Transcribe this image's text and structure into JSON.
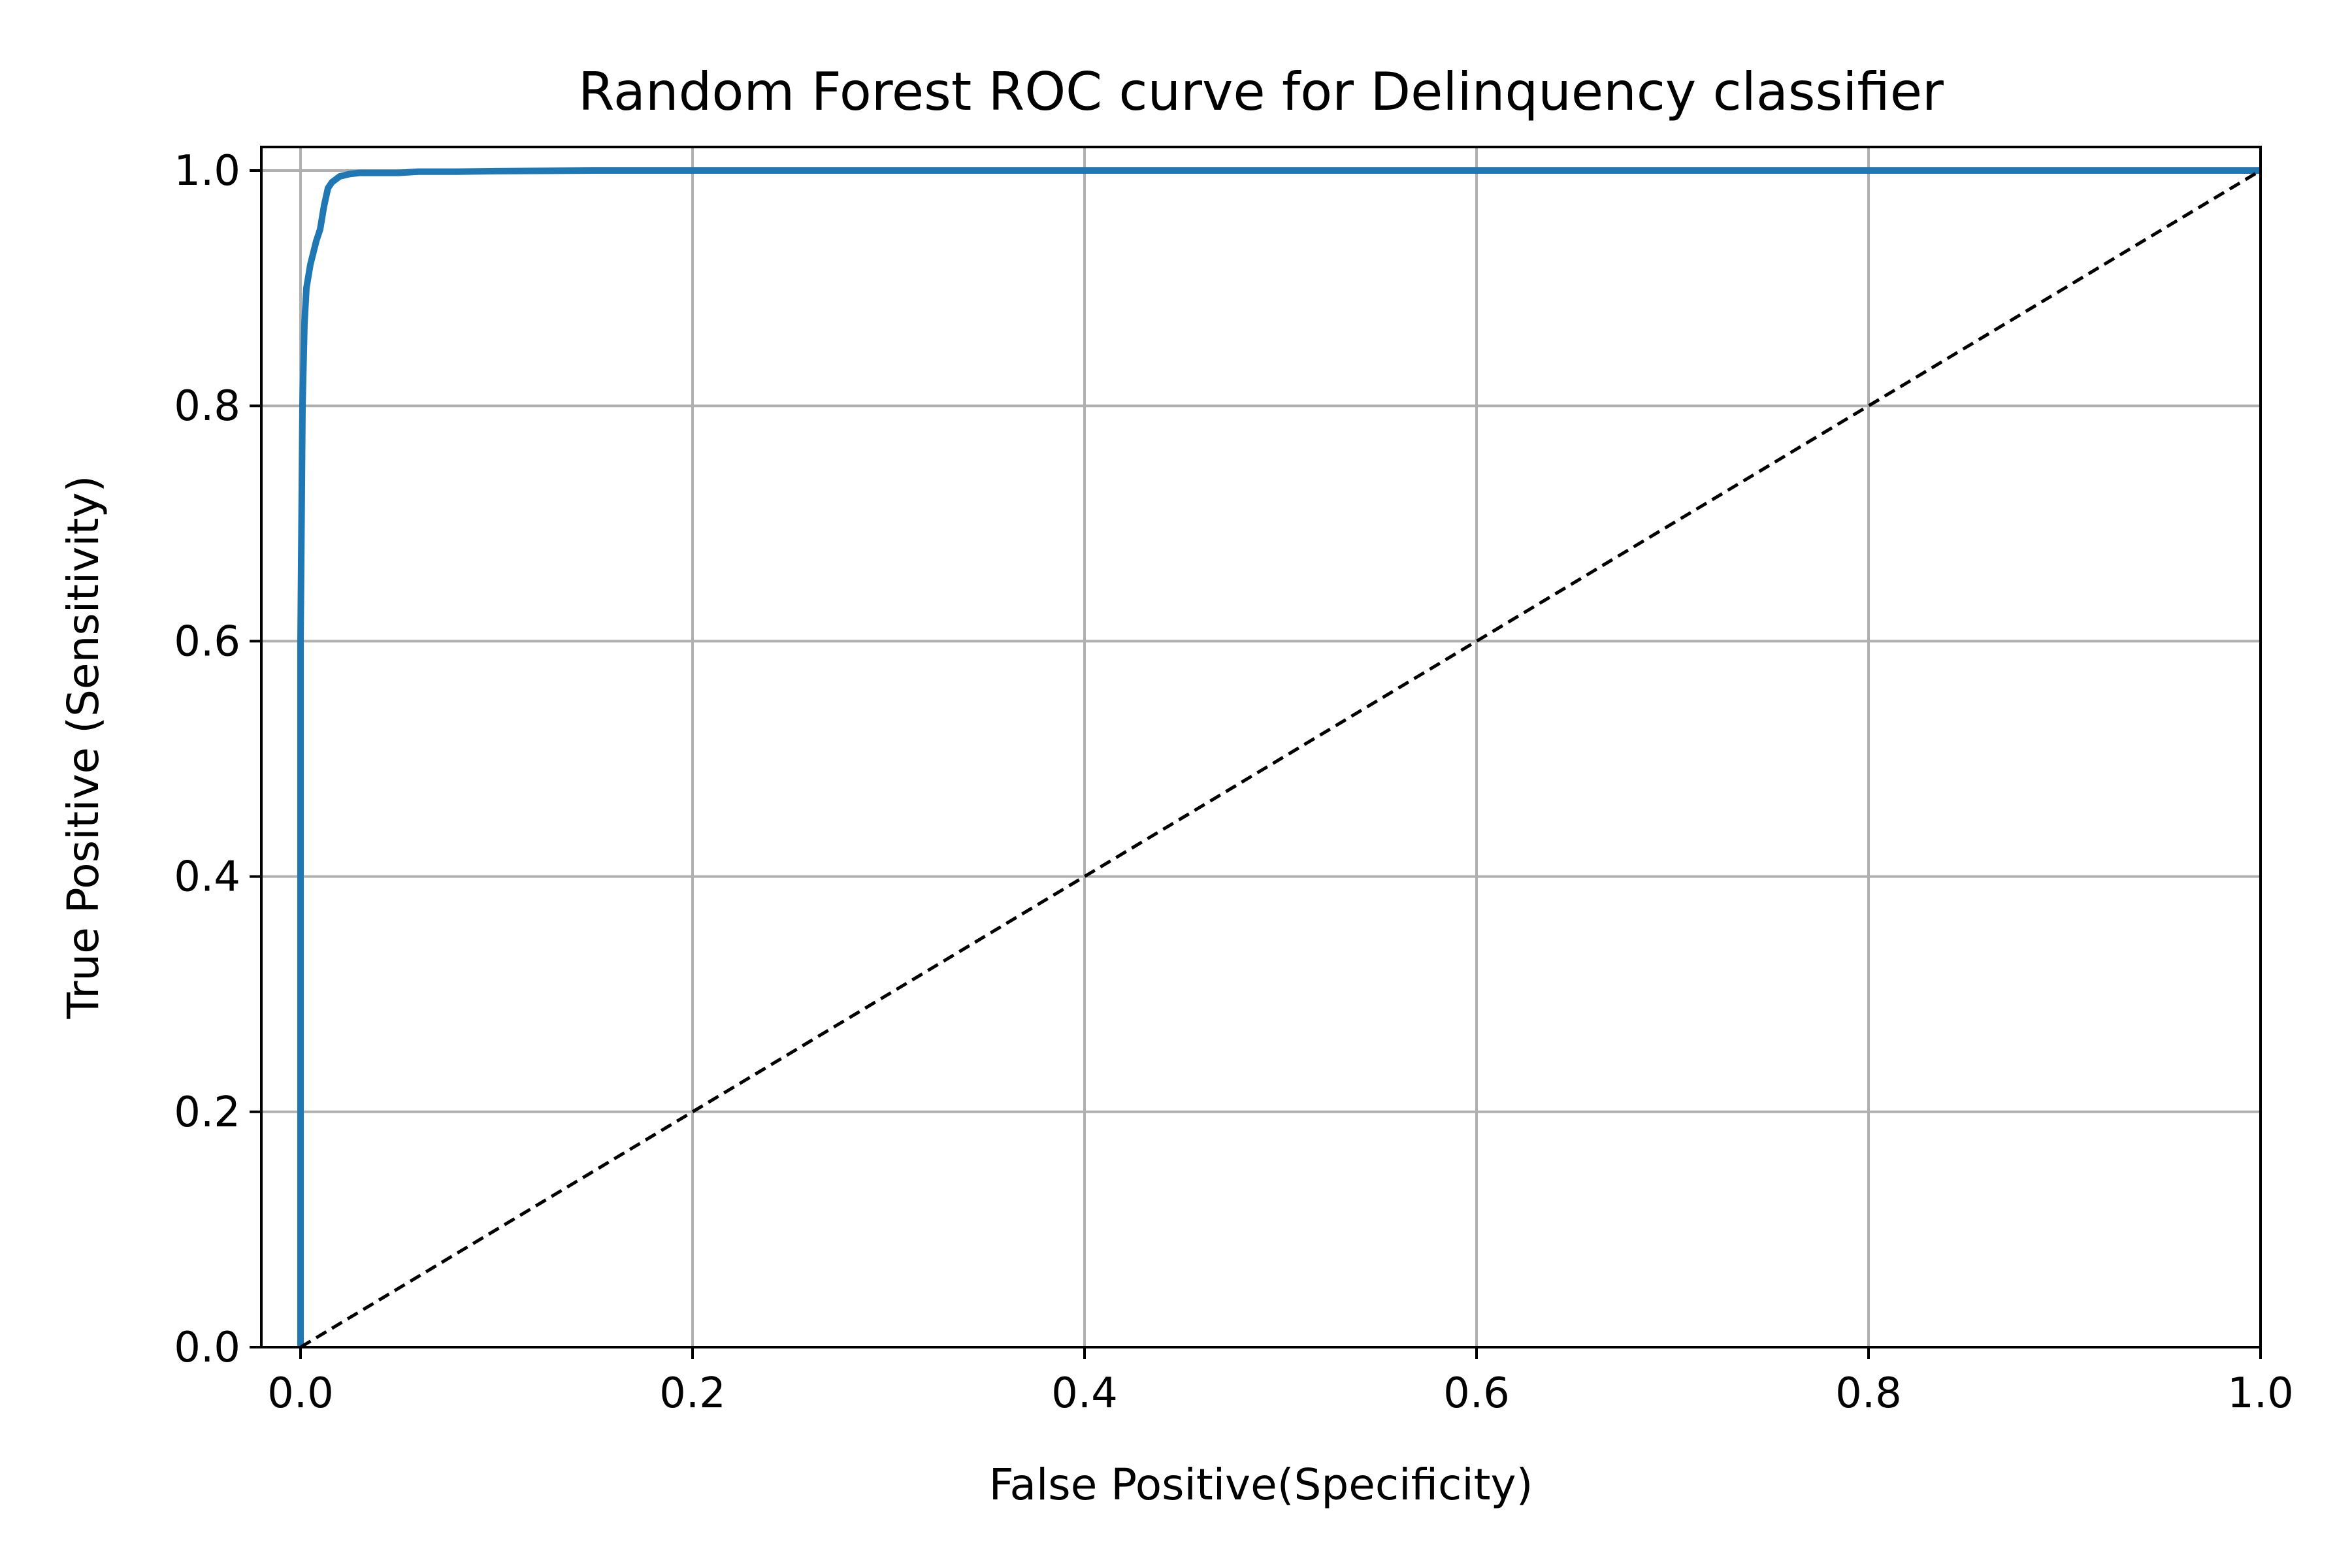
{
  "chart_data": {
    "type": "line",
    "title": "Random Forest ROC curve for Delinquency classifier",
    "xlabel": "False Positive(Specificity)",
    "ylabel": "True Positive (Sensitivity)",
    "xlim": [
      -0.02,
      1.0
    ],
    "ylim": [
      0.0,
      1.02
    ],
    "xticks": [
      "0.0",
      "0.2",
      "0.4",
      "0.6",
      "0.8",
      "1.0"
    ],
    "yticks": [
      "0.0",
      "0.2",
      "0.4",
      "0.6",
      "0.8",
      "1.0"
    ],
    "grid": true,
    "legend": "none",
    "series": [
      {
        "color": "#1f77b4",
        "style": "solid",
        "x": [
          0.0,
          0.0,
          0.001,
          0.002,
          0.003,
          0.005,
          0.008,
          0.01,
          0.012,
          0.014,
          0.016,
          0.02,
          0.025,
          0.03,
          0.05,
          0.06,
          0.08,
          0.1,
          0.15,
          0.2,
          0.4,
          0.6,
          0.8,
          1.0
        ],
        "y": [
          0.0,
          0.6,
          0.8,
          0.87,
          0.9,
          0.92,
          0.94,
          0.95,
          0.97,
          0.985,
          0.99,
          0.995,
          0.997,
          0.998,
          0.998,
          0.999,
          0.999,
          0.9995,
          1.0,
          1.0,
          1.0,
          1.0,
          1.0,
          1.0
        ]
      },
      {
        "color": "#000000",
        "style": "dashed",
        "x": [
          0.0,
          1.0
        ],
        "y": [
          0.0,
          1.0
        ]
      }
    ]
  }
}
